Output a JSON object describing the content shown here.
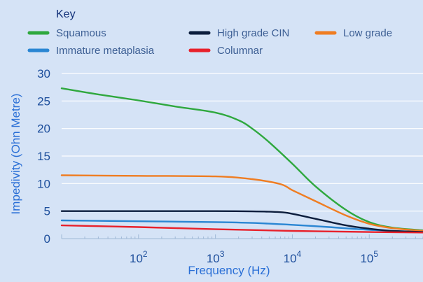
{
  "chart_data": {
    "type": "line",
    "legend_title": "Key",
    "xlabel": "Frequency (Hz)",
    "ylabel": "Impedivity (Ohn Metre)",
    "x_scale": "log",
    "xlim": [
      10,
      500000
    ],
    "ylim": [
      0,
      30
    ],
    "yticks": [
      0,
      5,
      10,
      15,
      20,
      25,
      30
    ],
    "xticks": [
      {
        "value": 100,
        "base": "10",
        "exp": "2"
      },
      {
        "value": 1000,
        "base": "10",
        "exp": "3"
      },
      {
        "value": 10000,
        "base": "10",
        "exp": "4"
      },
      {
        "value": 100000,
        "base": "10",
        "exp": "5"
      }
    ],
    "grid": "horizontal",
    "legend_position": "top",
    "series": [
      {
        "name": "Squamous",
        "color": "#2fa83e",
        "x": [
          10,
          30,
          100,
          300,
          1000,
          2000,
          3000,
          5000,
          10000,
          20000,
          50000,
          100000,
          200000,
          500000
        ],
        "y": [
          27.3,
          26.2,
          25.1,
          24.0,
          22.9,
          21.5,
          20.0,
          17.5,
          13.6,
          9.5,
          5.2,
          3.0,
          2.0,
          1.5
        ]
      },
      {
        "name": "High grade CIN",
        "color": "#0b1d3c",
        "x": [
          10,
          100,
          1000,
          3000,
          7000,
          10000,
          20000,
          50000,
          100000,
          200000,
          500000
        ],
        "y": [
          5.0,
          5.0,
          5.0,
          4.95,
          4.8,
          4.5,
          3.6,
          2.4,
          1.8,
          1.4,
          1.2
        ]
      },
      {
        "name": "Low grade",
        "color": "#ef7d22",
        "x": [
          10,
          100,
          1000,
          3000,
          7000,
          10000,
          20000,
          50000,
          100000,
          200000,
          500000
        ],
        "y": [
          11.5,
          11.4,
          11.3,
          10.8,
          9.9,
          8.8,
          6.8,
          4.2,
          2.7,
          1.9,
          1.4
        ]
      },
      {
        "name": "Immature metaplasia",
        "color": "#2a86d3",
        "x": [
          10,
          100,
          1000,
          3000,
          10000,
          30000,
          100000,
          500000
        ],
        "y": [
          3.3,
          3.15,
          3.0,
          2.85,
          2.5,
          2.1,
          1.6,
          1.2
        ]
      },
      {
        "name": "Columnar",
        "color": "#e8212b",
        "x": [
          10,
          100,
          1000,
          10000,
          100000,
          500000
        ],
        "y": [
          2.4,
          2.1,
          1.7,
          1.4,
          1.2,
          1.1
        ]
      }
    ]
  }
}
